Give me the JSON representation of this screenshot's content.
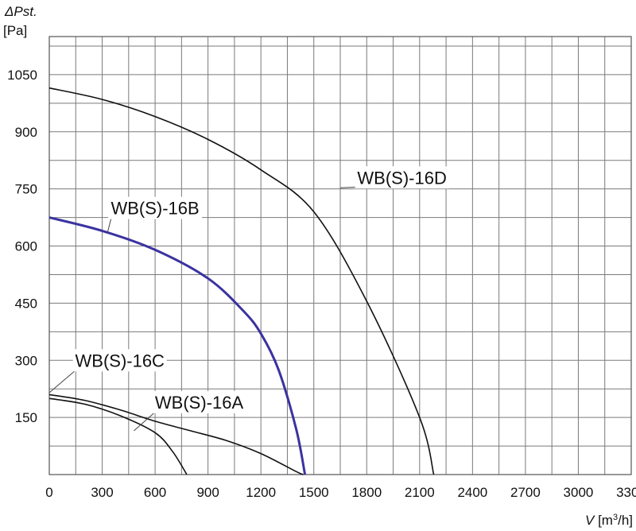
{
  "chart_data": {
    "type": "line",
    "y_title_symbol": "ΔPst.",
    "y_unit": "[Pa]",
    "x_title": {
      "symbol": "V",
      "unit_pre": " [m",
      "unit_sup": "3",
      "unit_post": "/h]"
    },
    "xlim": [
      0,
      3300
    ],
    "ylim": [
      0,
      1150
    ],
    "x_ticks": [
      0,
      300,
      600,
      900,
      1200,
      1500,
      1800,
      2100,
      2400,
      2700,
      3000,
      3300
    ],
    "y_ticks": [
      150,
      300,
      450,
      600,
      750,
      900,
      1050
    ],
    "x_tick_labels": [
      "0",
      "300",
      "600",
      "900",
      "1200",
      "1500",
      "1800",
      "2100",
      "2400",
      "2700",
      "3000",
      "3300"
    ],
    "y_tick_labels": [
      "150",
      "300",
      "450",
      "600",
      "750",
      "900",
      "1050"
    ],
    "grid": true,
    "series": [
      {
        "name": "WB(S)-16D",
        "color": "#111111",
        "points": [
          [
            0,
            1015
          ],
          [
            300,
            985
          ],
          [
            600,
            940
          ],
          [
            900,
            880
          ],
          [
            1200,
            800
          ],
          [
            1500,
            690
          ],
          [
            1800,
            455
          ],
          [
            2100,
            150
          ],
          [
            2180,
            0
          ]
        ]
      },
      {
        "name": "WB(S)-16B",
        "color": "#3a33a0",
        "points": [
          [
            0,
            675
          ],
          [
            300,
            640
          ],
          [
            600,
            590
          ],
          [
            900,
            515
          ],
          [
            1100,
            430
          ],
          [
            1200,
            370
          ],
          [
            1300,
            275
          ],
          [
            1400,
            120
          ],
          [
            1450,
            0
          ]
        ]
      },
      {
        "name": "WB(S)-16C",
        "color": "#111111",
        "points": [
          [
            0,
            210
          ],
          [
            200,
            195
          ],
          [
            400,
            170
          ],
          [
            600,
            140
          ],
          [
            800,
            115
          ],
          [
            1000,
            90
          ],
          [
            1200,
            55
          ],
          [
            1400,
            8
          ],
          [
            1440,
            0
          ]
        ]
      },
      {
        "name": "WB(S)-16A",
        "color": "#111111",
        "points": [
          [
            0,
            200
          ],
          [
            200,
            185
          ],
          [
            400,
            155
          ],
          [
            600,
            110
          ],
          [
            700,
            60
          ],
          [
            780,
            0
          ]
        ]
      }
    ],
    "annotations": [
      {
        "text": "WB(S)-16D",
        "series": "WB(S)-16D",
        "at": [
          1650,
          753
        ],
        "label_at": [
          2000,
          780
        ]
      },
      {
        "text": "WB(S)-16B",
        "series": "WB(S)-16B",
        "at": [
          330,
          635
        ],
        "label_at": [
          600,
          700
        ]
      },
      {
        "text": "WB(S)-16C",
        "series": "WB(S)-16C",
        "at": [
          0,
          215
        ],
        "label_at": [
          400,
          300
        ]
      },
      {
        "text": "WB(S)-16A",
        "series": "WB(S)-16A",
        "at": [
          480,
          115
        ],
        "label_at": [
          850,
          190
        ]
      }
    ]
  }
}
